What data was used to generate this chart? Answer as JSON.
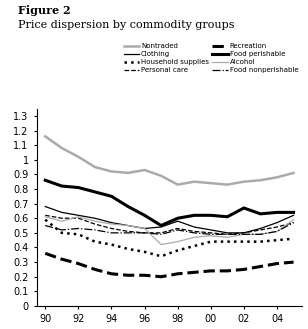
{
  "title_fig": "Figure 2",
  "title_main": "Price dispersion by commodity groups",
  "x": [
    90,
    91,
    92,
    93,
    94,
    95,
    96,
    97,
    98,
    99,
    100,
    101,
    102,
    103,
    104,
    105
  ],
  "xticks": [
    90,
    92,
    94,
    96,
    98,
    100,
    102,
    104
  ],
  "xtick_labels": [
    "90",
    "92",
    "94",
    "96",
    "98",
    "00",
    "02",
    "04"
  ],
  "ylim": [
    0,
    1.35
  ],
  "yticks": [
    0,
    0.1,
    0.2,
    0.3,
    0.4,
    0.5,
    0.6,
    0.7,
    0.8,
    0.9,
    1.0,
    1.1,
    1.2,
    1.3
  ],
  "series": {
    "Nontraded": {
      "y": [
        1.16,
        1.08,
        1.02,
        0.95,
        0.92,
        0.91,
        0.93,
        0.89,
        0.83,
        0.85,
        0.84,
        0.83,
        0.85,
        0.86,
        0.88,
        0.91
      ],
      "color": "#aaaaaa",
      "linestyle": "solid",
      "linewidth": 1.8,
      "legend_col": 0
    },
    "Clothing": {
      "y": [
        0.68,
        0.64,
        0.62,
        0.6,
        0.57,
        0.55,
        0.53,
        0.54,
        0.58,
        0.54,
        0.52,
        0.5,
        0.5,
        0.53,
        0.57,
        0.62
      ],
      "color": "#000000",
      "linestyle": "solid",
      "linewidth": 0.9,
      "legend_col": 1
    },
    "Household supplies": {
      "y": [
        0.59,
        0.5,
        0.49,
        0.44,
        0.42,
        0.39,
        0.37,
        0.34,
        0.38,
        0.41,
        0.44,
        0.44,
        0.44,
        0.44,
        0.45,
        0.46
      ],
      "color": "#000000",
      "linestyle": "dotted",
      "linewidth": 1.8,
      "legend_col": 0
    },
    "Personal care": {
      "y": [
        0.62,
        0.6,
        0.6,
        0.56,
        0.53,
        0.51,
        0.5,
        0.5,
        0.53,
        0.51,
        0.5,
        0.49,
        0.5,
        0.52,
        0.54,
        0.57
      ],
      "color": "#000000",
      "linestyle": "dashed",
      "linewidth": 0.9,
      "legend_col": 1
    },
    "Recreation": {
      "y": [
        0.36,
        0.32,
        0.29,
        0.25,
        0.22,
        0.21,
        0.21,
        0.2,
        0.22,
        0.23,
        0.24,
        0.24,
        0.25,
        0.27,
        0.29,
        0.3
      ],
      "color": "#000000",
      "linestyle": "dashed",
      "linewidth": 2.2,
      "legend_col": 0
    },
    "Food perishable": {
      "y": [
        0.86,
        0.82,
        0.81,
        0.78,
        0.75,
        0.68,
        0.62,
        0.55,
        0.6,
        0.62,
        0.62,
        0.61,
        0.67,
        0.63,
        0.64,
        0.64
      ],
      "color": "#000000",
      "linestyle": "solid",
      "linewidth": 2.2,
      "legend_col": 1
    },
    "Alcohol": {
      "y": [
        0.61,
        0.58,
        0.61,
        0.58,
        0.56,
        0.55,
        0.53,
        0.42,
        0.44,
        0.47,
        0.48,
        0.47,
        0.49,
        0.49,
        0.51,
        0.59
      ],
      "color": "#aaaaaa",
      "linestyle": "solid",
      "linewidth": 0.9,
      "legend_col": 0
    },
    "Food nonperishable": {
      "y": [
        0.55,
        0.52,
        0.53,
        0.52,
        0.5,
        0.5,
        0.5,
        0.49,
        0.52,
        0.5,
        0.49,
        0.49,
        0.49,
        0.49,
        0.51,
        0.57
      ],
      "color": "#000000",
      "linestyle": "dashdot",
      "linewidth": 0.9,
      "legend_col": 1
    }
  },
  "legend_order_col0": [
    "Nontraded",
    "Household supplies",
    "Recreation",
    "Alcohol"
  ],
  "legend_order_col1": [
    "Clothing",
    "Personal care",
    "Food perishable",
    "Food nonperishable"
  ],
  "background_color": "#ffffff"
}
